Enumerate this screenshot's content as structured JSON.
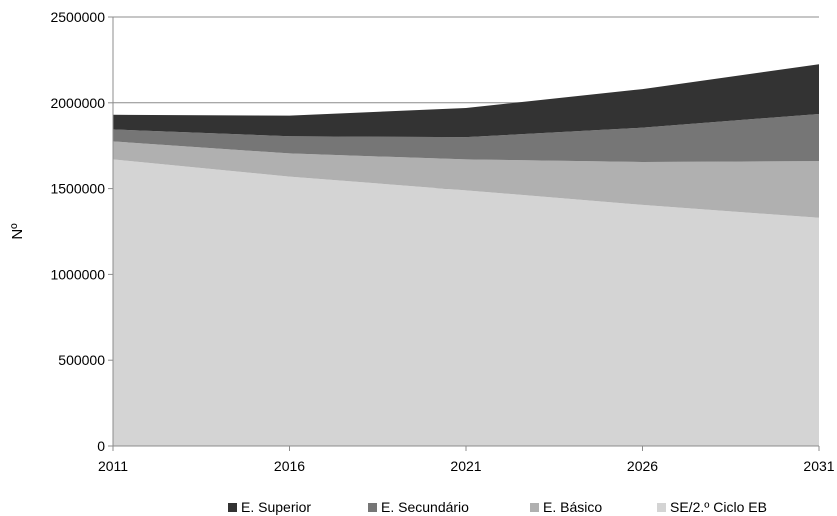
{
  "chart_data": {
    "type": "area",
    "stacked": true,
    "x": [
      2011,
      2016,
      2021,
      2026,
      2031
    ],
    "ylabel": "Nº",
    "xlabel": "",
    "ylim": [
      0,
      2500000
    ],
    "xlim": [
      2011,
      2031
    ],
    "y_ticks": [
      "0",
      "500000",
      "1000000",
      "1500000",
      "2000000",
      "2500000"
    ],
    "x_ticks": [
      "2011",
      "2016",
      "2021",
      "2026",
      "2031"
    ],
    "grid": "horizontal",
    "legend_position": "bottom",
    "series": [
      {
        "name": "SE/2.º Ciclo EB",
        "color": "#d4d4d4",
        "values": [
          1670000,
          1570000,
          1490000,
          1405000,
          1330000
        ]
      },
      {
        "name": "E. Básico",
        "color": "#b0b0b0",
        "values": [
          105000,
          135000,
          180000,
          250000,
          330000
        ]
      },
      {
        "name": "E. Secundário",
        "color": "#767676",
        "values": [
          70000,
          100000,
          130000,
          200000,
          275000
        ]
      },
      {
        "name": "E. Superior",
        "color": "#333333",
        "values": [
          85000,
          120000,
          170000,
          225000,
          290000
        ]
      }
    ],
    "legend_order": [
      3,
      2,
      1,
      0
    ]
  }
}
